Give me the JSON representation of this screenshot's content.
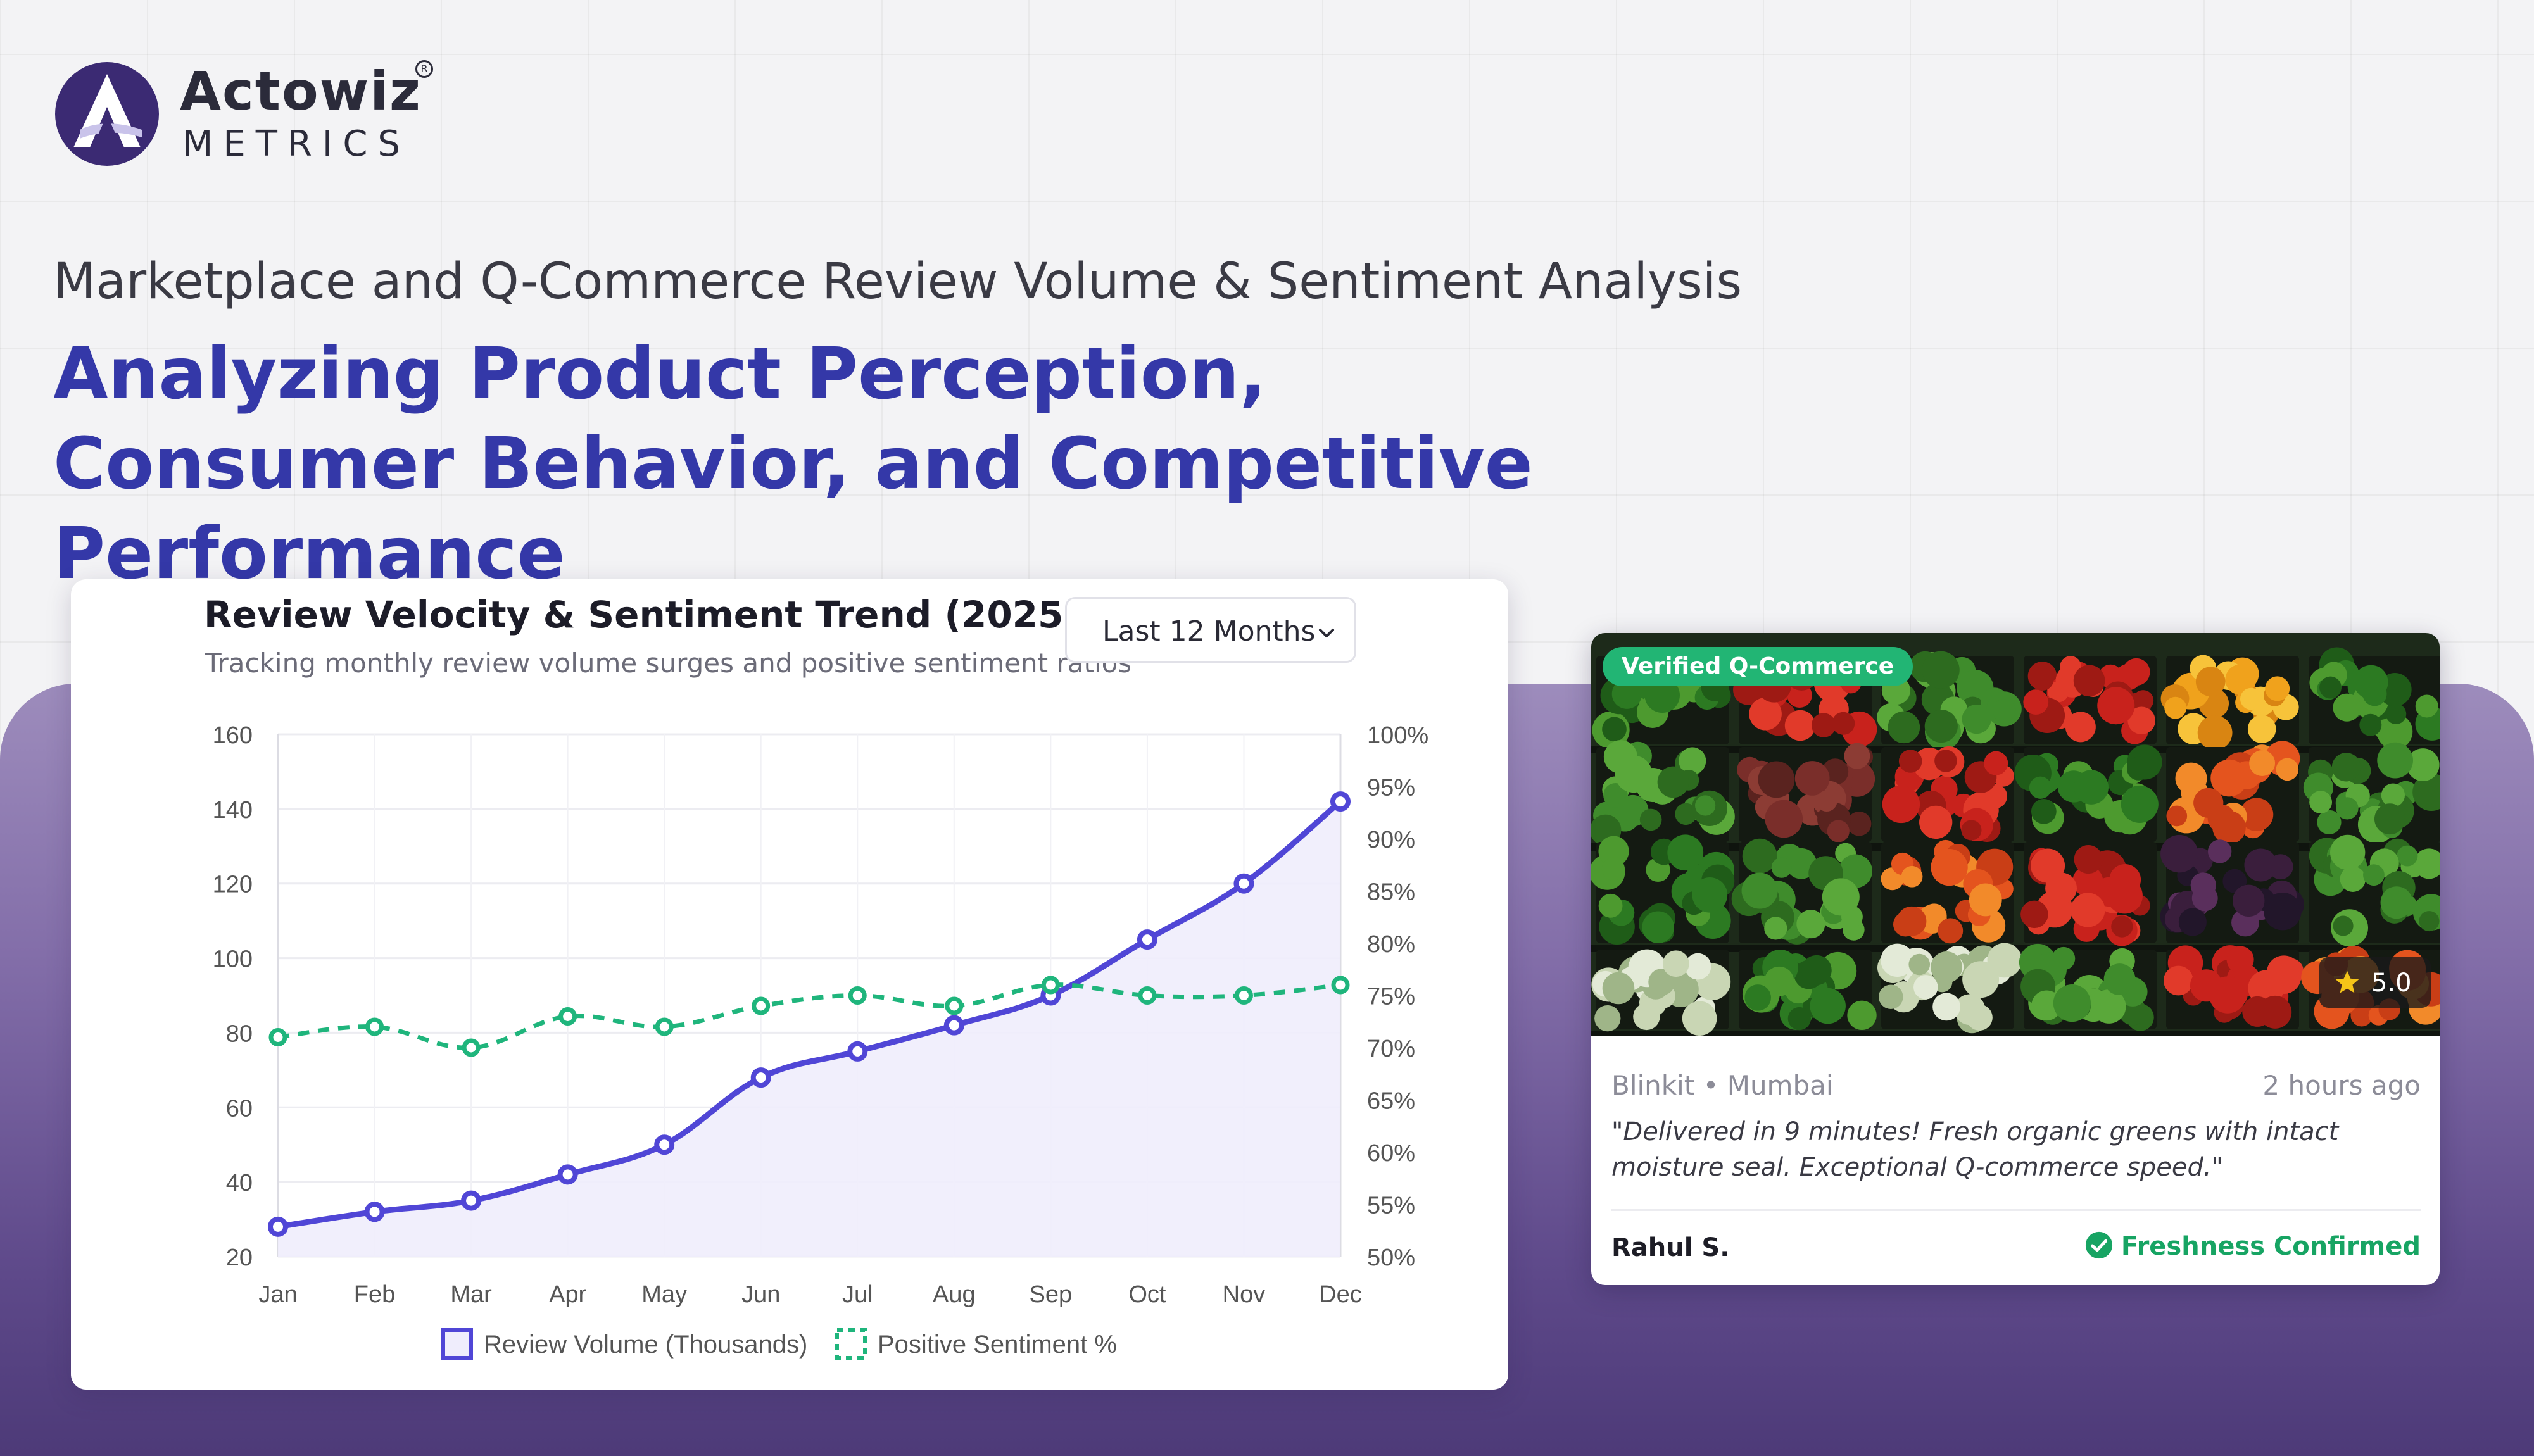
{
  "brand": {
    "name": "Actowiz",
    "sub": "METRICS",
    "registered": "R",
    "colors": {
      "primary": "#3438a8",
      "mark": "#3b2a73"
    }
  },
  "header": {
    "eyebrow": "Marketplace and Q-Commerce Review Volume & Sentiment Analysis",
    "headline": "Analyzing Product Perception, Consumer Behavior, and Competitive Performance"
  },
  "chart_card": {
    "range_select": {
      "selected": "Last 12 Months",
      "icon": "chevron-down-icon"
    }
  },
  "chart_data": {
    "type": "line",
    "title": "Review Velocity & Sentiment Trend (2025–2026)",
    "subtitle": "Tracking monthly review volume surges and positive sentiment ratios",
    "categories": [
      "Jan",
      "Feb",
      "Mar",
      "Apr",
      "May",
      "Jun",
      "Jul",
      "Aug",
      "Sep",
      "Oct",
      "Nov",
      "Dec"
    ],
    "y_left": {
      "min": 20,
      "max": 160,
      "ticks": [
        "160",
        "140",
        "120",
        "100",
        "80",
        "60",
        "40",
        "20"
      ]
    },
    "y_right": {
      "min": 50,
      "max": 100,
      "ticks": [
        "100%",
        "95%",
        "90%",
        "85%",
        "80%",
        "75%",
        "70%",
        "65%",
        "60%",
        "55%",
        "50%"
      ]
    },
    "series": [
      {
        "name": "Review Volume (Thousands)",
        "axis": "left",
        "style": "solid-area",
        "color": "#5046d6",
        "fill": "#efedfc",
        "values": [
          28,
          32,
          35,
          42,
          50,
          68,
          75,
          82,
          90,
          105,
          120,
          142
        ]
      },
      {
        "name": "Positive Sentiment %",
        "axis": "right",
        "style": "dashed",
        "color": "#1fb57c",
        "values": [
          71,
          72,
          70,
          73,
          72,
          74,
          75,
          74,
          76,
          75,
          75,
          76
        ]
      }
    ],
    "grid": true,
    "legend": "bottom"
  },
  "review_card": {
    "badge": "Verified Q-Commerce",
    "rating": "5.0",
    "source": "Blinkit • Mumbai",
    "time": "2 hours ago",
    "text": "\"Delivered in 9 minutes! Fresh organic greens with intact moisture seal. Exceptional Q-commerce speed.\"",
    "reviewer": "Rahul S.",
    "status": "Freshness Confirmed",
    "colors": {
      "badge": "#22b574",
      "status": "#17a463"
    }
  }
}
